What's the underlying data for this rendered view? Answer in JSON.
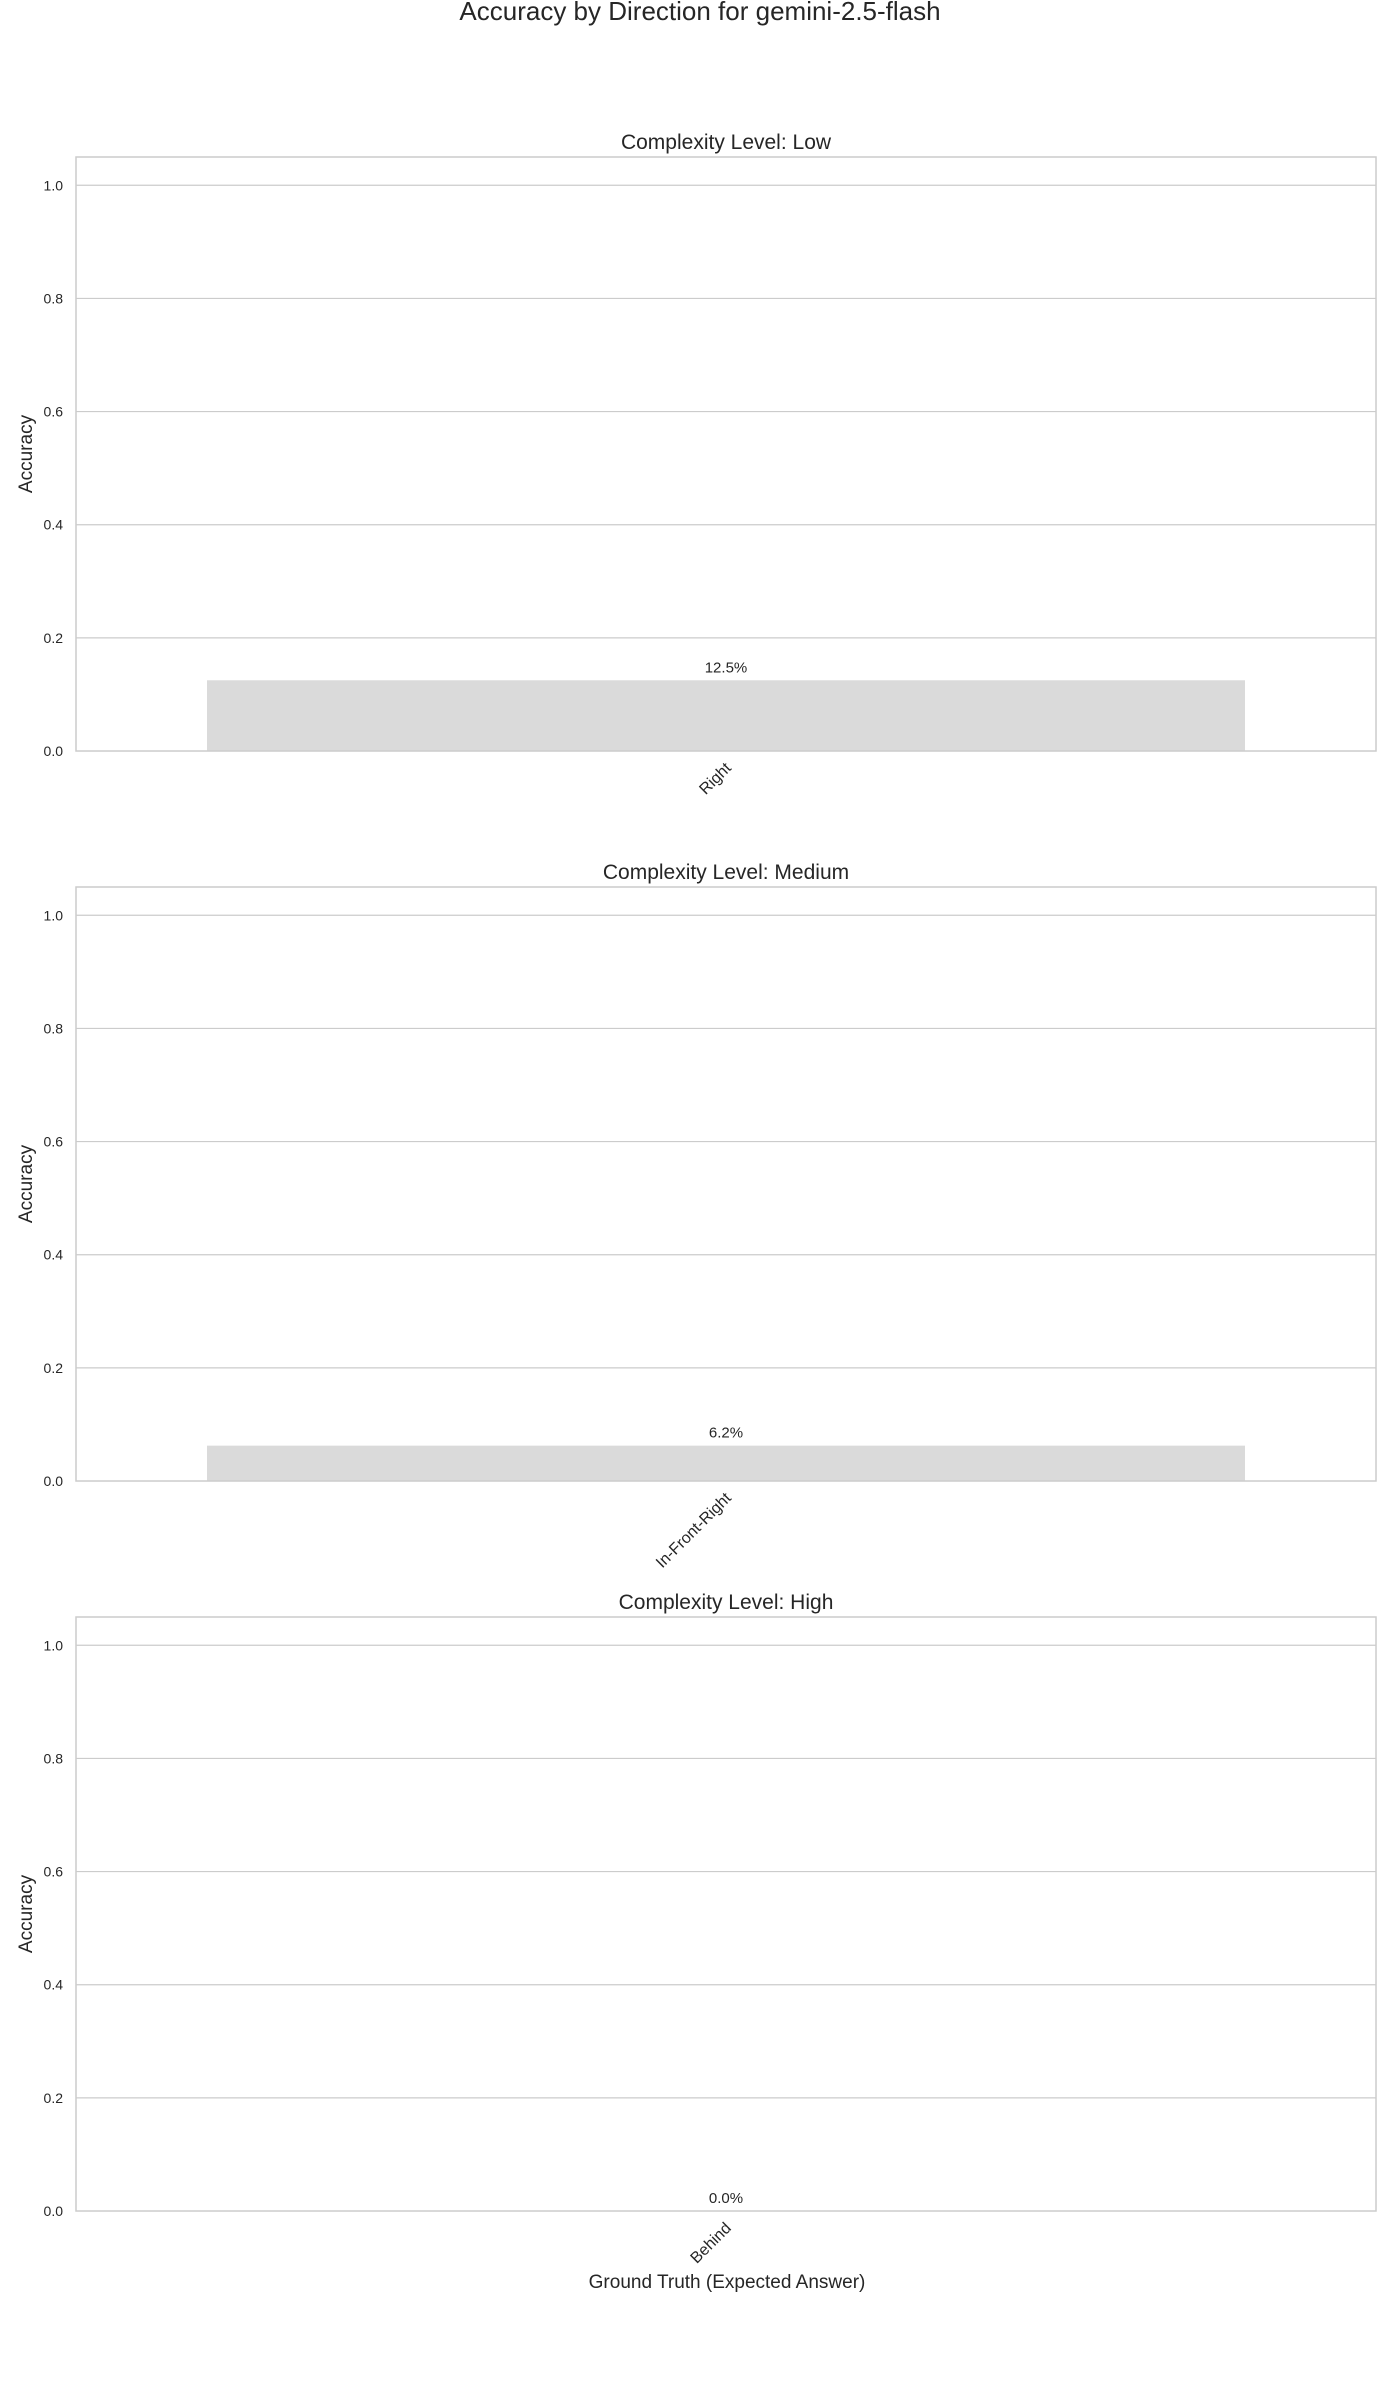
{
  "chart_data": {
    "title": "Accuracy by Direction for gemini-2.5-flash",
    "type": "bar",
    "bar_color": "#dadada",
    "grid": true,
    "xlabel": "Ground Truth (Expected Answer)",
    "yticks": [
      "0.0",
      "0.2",
      "0.4",
      "0.6",
      "0.8",
      "1.0"
    ],
    "ylim": [
      0,
      1.05
    ],
    "panels": [
      {
        "title": "Complexity Level: Low",
        "ylabel": "Accuracy",
        "categories": [
          "Right"
        ],
        "values": [
          0.125
        ],
        "value_labels": [
          "12.5%"
        ]
      },
      {
        "title": "Complexity Level: Medium",
        "ylabel": "Accuracy",
        "categories": [
          "In-Front-Right"
        ],
        "values": [
          0.0625
        ],
        "value_labels": [
          "6.2%"
        ]
      },
      {
        "title": "Complexity Level: High",
        "ylabel": "Accuracy",
        "categories": [
          "Behind"
        ],
        "values": [
          0.0
        ],
        "value_labels": [
          "0.0%"
        ]
      }
    ]
  }
}
